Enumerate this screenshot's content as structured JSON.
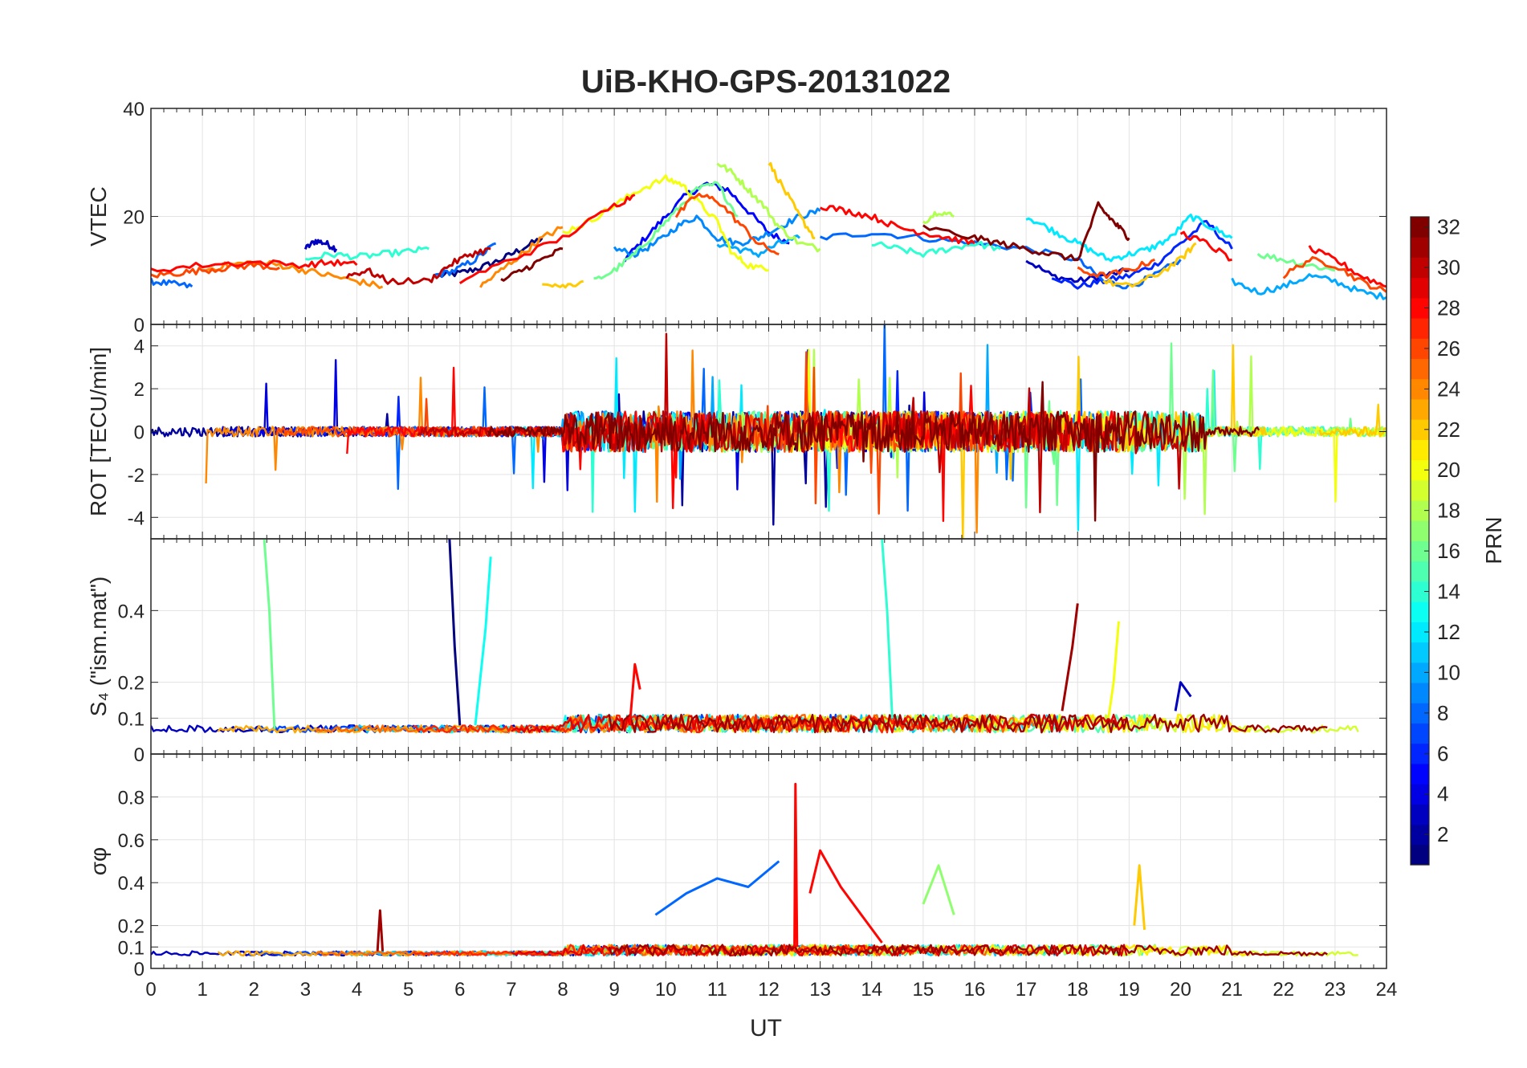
{
  "chart_data": {
    "type": "line",
    "title": "UiB-KHO-GPS-20131022",
    "x": {
      "label": "UT",
      "range": [
        0,
        24
      ],
      "ticks": [
        "0",
        "1",
        "2",
        "3",
        "4",
        "5",
        "6",
        "7",
        "8",
        "9",
        "10",
        "11",
        "12",
        "13",
        "14",
        "15",
        "16",
        "17",
        "18",
        "19",
        "20",
        "21",
        "22",
        "23",
        "24"
      ]
    },
    "grid": true,
    "colorbar": {
      "label": "PRN",
      "colormap": "jet",
      "range": [
        1,
        32
      ],
      "ticks": [
        "2",
        "4",
        "6",
        "8",
        "10",
        "12",
        "14",
        "16",
        "18",
        "20",
        "22",
        "24",
        "26",
        "28",
        "30",
        "32"
      ],
      "placement": "right"
    },
    "panels": [
      {
        "ylabel": "VTEC",
        "ylim": [
          0,
          40
        ],
        "yticks": [
          "0",
          "20",
          "40"
        ],
        "series": [
          {
            "prn": 1,
            "x": [
              5.6,
              6.0,
              6.4,
              6.8,
              7.2,
              7.6
            ],
            "y": [
              9,
              9.5,
              10.5,
              12,
              14,
              16
            ]
          },
          {
            "prn": 3,
            "x": [
              3.0,
              3.2,
              3.4,
              3.6,
              17.0,
              17.5,
              18.0,
              18.5,
              19.0
            ],
            "y": [
              14,
              15.5,
              15,
              14,
              12,
              9,
              8,
              9,
              10
            ]
          },
          {
            "prn": 5,
            "x": [
              9.2,
              9.6,
              10.0,
              10.4,
              10.8,
              11.2,
              11.6,
              12.0,
              12.4
            ],
            "y": [
              12,
              16,
              20,
              24,
              26,
              25,
              21,
              17,
              15
            ]
          },
          {
            "prn": 6,
            "x": [
              17.5,
              18.0,
              18.5,
              19.0,
              19.5,
              20.0,
              20.5,
              21.0
            ],
            "y": [
              9,
              7,
              8,
              9,
              11,
              15,
              19,
              14
            ]
          },
          {
            "prn": 8,
            "x": [
              0.0,
              0.4,
              0.8,
              5.5,
              5.9,
              6.3,
              6.7,
              13.0,
              14.0,
              15.0,
              16.0,
              17.0,
              18.0,
              18.5,
              19.0,
              19.5,
              20.0
            ],
            "y": [
              8,
              7.5,
              7,
              9,
              10,
              12,
              15,
              16,
              17,
              16,
              15,
              14,
              12,
              8,
              7,
              9,
              12
            ]
          },
          {
            "prn": 9,
            "x": [
              9.0,
              9.4,
              9.8,
              10.2,
              10.6,
              11.0,
              11.4,
              11.8,
              12.2,
              12.6,
              13.0
            ],
            "y": [
              14,
              13,
              15,
              18,
              20,
              16,
              15,
              16,
              18,
              20,
              21
            ]
          },
          {
            "prn": 10,
            "x": [
              11.0,
              11.4,
              11.8,
              12.2,
              12.6,
              21.0,
              21.5,
              22.0,
              22.5,
              23.0,
              23.5,
              24.0
            ],
            "y": [
              15,
              14,
              13,
              15,
              16,
              8,
              6,
              7,
              9,
              8,
              6,
              5
            ]
          },
          {
            "prn": 12,
            "x": [
              17.0,
              17.4,
              17.8,
              18.2,
              18.6,
              19.0,
              19.4,
              19.8,
              20.2,
              20.6,
              21.0
            ],
            "y": [
              20,
              18,
              16,
              14,
              12,
              13,
              14,
              16,
              20,
              18,
              16
            ]
          },
          {
            "prn": 14,
            "x": [
              3.0,
              3.5,
              4.0,
              4.5,
              5.0,
              5.4,
              14.0,
              14.5,
              15.0,
              15.5,
              16.0,
              16.5
            ],
            "y": [
              12,
              13,
              12.5,
              13,
              13.5,
              14,
              15,
              14,
              13,
              14,
              15,
              14
            ]
          },
          {
            "prn": 16,
            "x": [
              8.6,
              9.0,
              9.4,
              9.8,
              10.2,
              10.6,
              11.0,
              11.4,
              21.5,
              22.0,
              22.5,
              23.0
            ],
            "y": [
              8,
              10,
              13,
              17,
              21,
              25,
              26,
              20,
              13,
              12,
              11,
              10
            ]
          },
          {
            "prn": 18,
            "x": [
              11.0,
              11.3,
              11.6,
              11.9,
              12.2,
              12.6,
              13.0,
              15.0,
              15.3,
              15.6
            ],
            "y": [
              30,
              28,
              25,
              22,
              18,
              15,
              14,
              19,
              21,
              20
            ]
          },
          {
            "prn": 20,
            "x": [
              8.0,
              8.5,
              9.0,
              9.5,
              10.0,
              10.3,
              10.6,
              11.0,
              11.3,
              11.6,
              12.0
            ],
            "y": [
              17,
              19,
              22,
              25,
              27,
              26,
              23,
              19,
              13,
              11,
              10
            ]
          },
          {
            "prn": 22,
            "x": [
              7.6,
              8.0,
              8.4,
              12.0,
              12.3,
              12.6,
              12.9,
              18.5,
              19.0,
              19.5,
              20.0,
              20.3
            ],
            "y": [
              8,
              7,
              8,
              30,
              25,
              20,
              16,
              8,
              7,
              9,
              12,
              15
            ]
          },
          {
            "prn": 24,
            "x": [
              1.0,
              1.5,
              2.0,
              2.5,
              3.0,
              3.5,
              4.0,
              4.5,
              6.4,
              6.8,
              7.2,
              7.6,
              8.0
            ],
            "y": [
              10,
              11,
              11.5,
              11,
              10,
              9,
              8,
              7,
              7,
              10,
              13,
              16,
              18
            ]
          },
          {
            "prn": 26,
            "x": [
              0.0,
              0.5,
              1.0,
              1.5,
              2.0,
              2.5,
              10.2,
              10.6,
              11.0,
              11.4,
              11.8,
              12.2,
              18.0,
              18.5,
              19.0,
              19.5,
              22.0,
              22.5,
              23.0,
              23.5,
              24.0
            ],
            "y": [
              9,
              9.5,
              10,
              10.5,
              11,
              10.5,
              20,
              24,
              23,
              19,
              15,
              13,
              10,
              9,
              10,
              12,
              9,
              12,
              11,
              8,
              6
            ]
          },
          {
            "prn": 28,
            "x": [
              0.0,
              1.0,
              2.0,
              3.0,
              3.5,
              4.0,
              6.0,
              7.0,
              8.0,
              9.0,
              9.4,
              13.0,
              13.5,
              14.0,
              14.5,
              15.0,
              15.5,
              16.0,
              20.0,
              20.5,
              21.0,
              22.5,
              23.0,
              23.5,
              24.0
            ],
            "y": [
              10,
              11,
              11.5,
              11,
              11.5,
              11,
              8,
              12,
              16,
              22,
              24,
              22,
              21,
              20,
              18,
              17,
              16,
              15,
              17,
              15,
              12,
              14,
              12,
              9,
              7
            ]
          },
          {
            "prn": 30,
            "x": [
              3.8,
              4.2,
              4.6,
              5.4,
              5.8,
              6.2,
              6.6
            ],
            "y": [
              9,
              10,
              8,
              8,
              11,
              13,
              14
            ]
          },
          {
            "prn": 32,
            "x": [
              6.8,
              7.2,
              7.6,
              8.0,
              15.0,
              16.0,
              16.5,
              17.0,
              17.5,
              18.0,
              18.4,
              18.6,
              18.8,
              19.0
            ],
            "y": [
              8,
              10,
              12,
              14,
              18,
              16,
              15,
              14,
              13,
              12,
              22,
              20,
              18,
              16
            ]
          }
        ]
      },
      {
        "ylabel": "ROT [TECU/min]",
        "ylim": [
          -5,
          5
        ],
        "yticks": [
          "-4",
          "-2",
          "0",
          "2",
          "4"
        ],
        "series_note": "high-rate fluctuations per PRN"
      },
      {
        "ylabel": "S₄ (\"ism.mat\")",
        "ylim": [
          0,
          0.6
        ],
        "yticks": [
          "0",
          "0.1",
          "0.2",
          "0.4"
        ],
        "peaks": [
          {
            "prn": 16,
            "x": [
              2.2,
              2.3,
              2.4
            ],
            "y": [
              0.6,
              0.4,
              0.07
            ]
          },
          {
            "prn": 1,
            "x": [
              5.8,
              5.9,
              6.0
            ],
            "y": [
              0.6,
              0.3,
              0.08
            ]
          },
          {
            "prn": 13,
            "x": [
              6.3,
              6.5,
              6.6
            ],
            "y": [
              0.08,
              0.35,
              0.55
            ]
          },
          {
            "prn": 14,
            "x": [
              14.2,
              14.3,
              14.4
            ],
            "y": [
              0.6,
              0.4,
              0.1
            ]
          },
          {
            "prn": 31,
            "x": [
              17.7,
              17.9,
              18.0
            ],
            "y": [
              0.12,
              0.3,
              0.42
            ]
          },
          {
            "prn": 20,
            "x": [
              18.6,
              18.7,
              18.8
            ],
            "y": [
              0.1,
              0.2,
              0.37
            ]
          },
          {
            "prn": 28,
            "x": [
              9.3,
              9.4,
              9.5
            ],
            "y": [
              0.08,
              0.25,
              0.18
            ]
          },
          {
            "prn": 3,
            "x": [
              19.9,
              20.0,
              20.2
            ],
            "y": [
              0.12,
              0.2,
              0.16
            ]
          }
        ]
      },
      {
        "ylabel": "σφ",
        "ylim": [
          0,
          1
        ],
        "yticks": [
          "0",
          "0.1",
          "0.2",
          "0.4",
          "0.6",
          "0.8"
        ],
        "peaks": [
          {
            "prn": 28,
            "x": [
              12.5,
              12.52,
              12.55
            ],
            "y": [
              0.1,
              0.86,
              0.1
            ]
          },
          {
            "prn": 28,
            "x": [
              12.8,
              13.0,
              13.4,
              13.8,
              14.2
            ],
            "y": [
              0.35,
              0.55,
              0.38,
              0.25,
              0.12
            ]
          },
          {
            "prn": 8,
            "x": [
              9.8,
              10.4,
              11.0,
              11.6,
              12.2
            ],
            "y": [
              0.25,
              0.35,
              0.42,
              0.38,
              0.5
            ]
          },
          {
            "prn": 17,
            "x": [
              15.0,
              15.3,
              15.6
            ],
            "y": [
              0.3,
              0.48,
              0.25
            ]
          },
          {
            "prn": 22,
            "x": [
              19.1,
              19.2,
              19.3
            ],
            "y": [
              0.2,
              0.48,
              0.18
            ]
          },
          {
            "prn": 31,
            "x": [
              4.4,
              4.45,
              4.5
            ],
            "y": [
              0.08,
              0.27,
              0.08
            ]
          }
        ]
      }
    ]
  }
}
